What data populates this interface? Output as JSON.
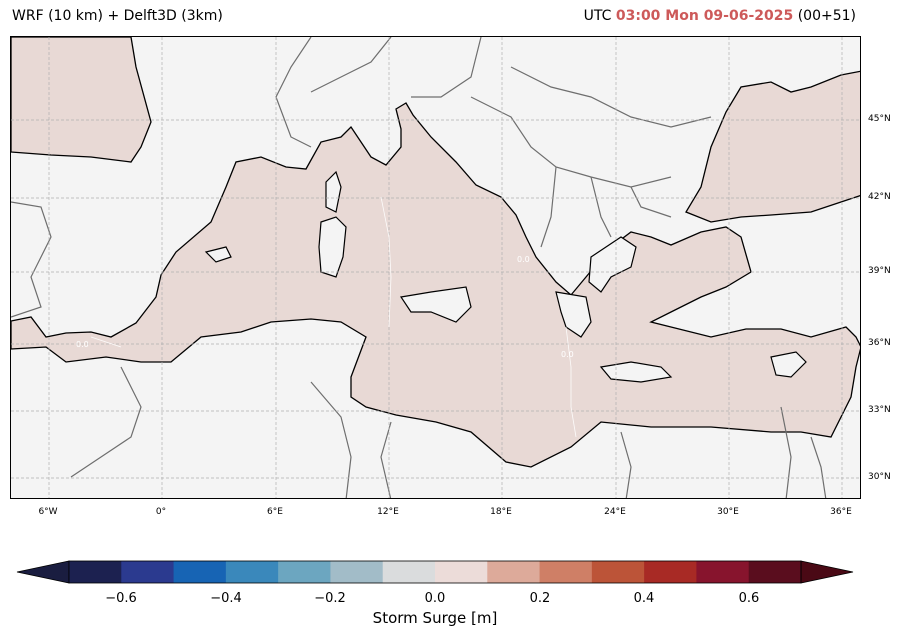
{
  "header": {
    "title_left": "WRF (10 km) + Delft3D (3km)",
    "utc_prefix": "UTC",
    "datetime": "03:00 Mon 09-06-2025",
    "lead": "(00+51)"
  },
  "map": {
    "lon_ticks": [
      "6°W",
      "0°",
      "6°E",
      "12°E",
      "18°E",
      "24°E",
      "30°E",
      "36°E"
    ],
    "lat_ticks": [
      "45°N",
      "42°N",
      "39°N",
      "36°N",
      "33°N",
      "30°N"
    ],
    "contour_label": "0.0",
    "colors": {
      "land": "#f4f4f4",
      "sea": "#e8d9d5",
      "grid": "#b0b0b0",
      "border": "#6e6e6e"
    }
  },
  "colorbar": {
    "ticks": [
      "−0.6",
      "−0.4",
      "−0.2",
      "0.0",
      "0.2",
      "0.4",
      "0.6"
    ],
    "label": "Storm Surge [m]",
    "colors": [
      "#1c2150",
      "#2b3a8f",
      "#1764b4",
      "#3a88bb",
      "#6ca6c0",
      "#a2bcc8",
      "#dadcdd",
      "#ecdcd9",
      "#ddaa9a",
      "#cf7f66",
      "#bc5438",
      "#a82a25",
      "#87142d",
      "#5a0d1e"
    ],
    "under_color": "#1a1d40",
    "over_color": "#4a0915"
  }
}
